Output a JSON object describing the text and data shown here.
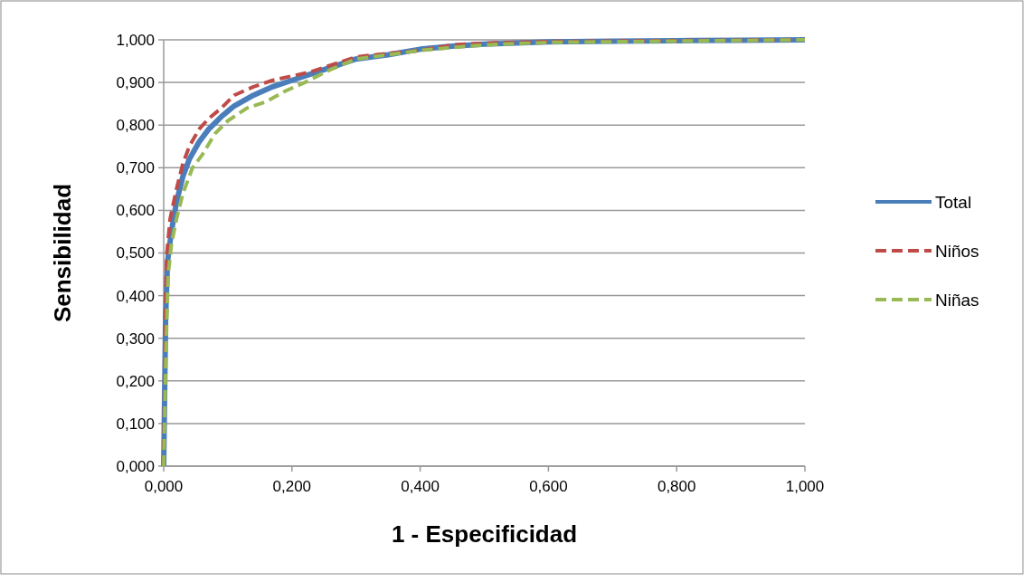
{
  "chart_data": {
    "type": "line",
    "xlabel": "1 - Especificidad",
    "ylabel": "Sensibilidad",
    "xlim": [
      0,
      1
    ],
    "ylim": [
      0,
      1
    ],
    "xticks": [
      {
        "value": 0,
        "label": "0,000"
      },
      {
        "value": 0.2,
        "label": "0,200"
      },
      {
        "value": 0.4,
        "label": "0,400"
      },
      {
        "value": 0.6,
        "label": "0,600"
      },
      {
        "value": 0.8,
        "label": "0,800"
      },
      {
        "value": 1,
        "label": "1,000"
      }
    ],
    "yticks": [
      {
        "value": 0,
        "label": "0,000"
      },
      {
        "value": 0.1,
        "label": "0,100"
      },
      {
        "value": 0.2,
        "label": "0,200"
      },
      {
        "value": 0.3,
        "label": "0,300"
      },
      {
        "value": 0.4,
        "label": "0,400"
      },
      {
        "value": 0.5,
        "label": "0,500"
      },
      {
        "value": 0.6,
        "label": "0,600"
      },
      {
        "value": 0.7,
        "label": "0,700"
      },
      {
        "value": 0.8,
        "label": "0,800"
      },
      {
        "value": 0.9,
        "label": "0,900"
      },
      {
        "value": 1,
        "label": "1,000"
      }
    ],
    "grid": "y",
    "legend": "right",
    "series": [
      {
        "name": "Total",
        "color": "#4a7ebb",
        "line_style": "solid",
        "x": [
          0,
          0.003,
          0.006,
          0.012,
          0.02,
          0.03,
          0.04,
          0.055,
          0.07,
          0.09,
          0.11,
          0.14,
          0.17,
          0.2,
          0.23,
          0.26,
          0.3,
          0.35,
          0.4,
          0.45,
          0.5,
          0.6,
          0.7,
          0.8,
          0.9,
          1
        ],
        "values": [
          0,
          0.35,
          0.48,
          0.55,
          0.62,
          0.68,
          0.72,
          0.76,
          0.79,
          0.82,
          0.845,
          0.87,
          0.89,
          0.905,
          0.92,
          0.935,
          0.955,
          0.965,
          0.978,
          0.985,
          0.99,
          0.995,
          0.997,
          0.998,
          0.999,
          1
        ]
      },
      {
        "name": "Niños",
        "color": "#be4b48",
        "line_style": "dashed",
        "x": [
          0,
          0.003,
          0.005,
          0.01,
          0.02,
          0.03,
          0.04,
          0.055,
          0.07,
          0.09,
          0.11,
          0.14,
          0.17,
          0.2,
          0.23,
          0.26,
          0.3,
          0.35,
          0.4,
          0.45,
          0.5,
          0.6,
          0.8,
          1
        ],
        "values": [
          0,
          0.4,
          0.5,
          0.58,
          0.65,
          0.71,
          0.75,
          0.79,
          0.815,
          0.84,
          0.87,
          0.89,
          0.905,
          0.915,
          0.925,
          0.94,
          0.96,
          0.968,
          0.975,
          0.988,
          0.992,
          0.996,
          0.998,
          1
        ]
      },
      {
        "name": "Niñas",
        "color": "#98b954",
        "line_style": "dashed",
        "x": [
          0,
          0.004,
          0.007,
          0.012,
          0.02,
          0.03,
          0.045,
          0.06,
          0.08,
          0.1,
          0.13,
          0.16,
          0.19,
          0.22,
          0.26,
          0.3,
          0.35,
          0.4,
          0.45,
          0.5,
          0.6,
          0.8,
          1
        ],
        "values": [
          0,
          0.3,
          0.45,
          0.52,
          0.58,
          0.64,
          0.7,
          0.73,
          0.78,
          0.81,
          0.84,
          0.855,
          0.88,
          0.9,
          0.93,
          0.955,
          0.965,
          0.975,
          0.982,
          0.988,
          0.994,
          0.997,
          1
        ]
      }
    ]
  }
}
